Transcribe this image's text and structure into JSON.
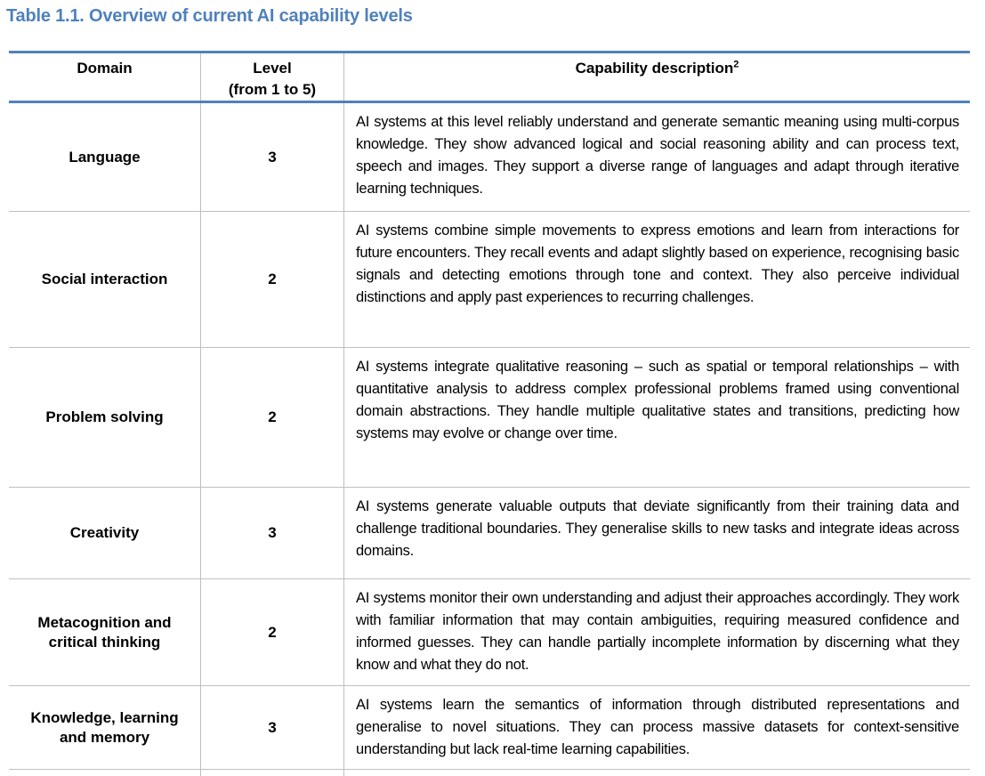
{
  "title": "Table 1.1. Overview of current AI capability levels",
  "colors": {
    "accent_blue": "#4F81BD",
    "separator_gray": "#BFBFBF",
    "text_black": "#000000"
  },
  "table": {
    "headers": {
      "domain": "Domain",
      "level_line1": "Level",
      "level_line2": "(from 1 to 5)",
      "capability": "Capability description",
      "capability_sup": "2"
    },
    "rows": [
      {
        "domain": "Language",
        "level": "3",
        "description": "AI systems at this level reliably understand and generate semantic meaning using multi-corpus knowledge. They show advanced logical and social reasoning ability and can process text, speech and images. They support a diverse range of languages and adapt through iterative learning techniques."
      },
      {
        "domain": "Social interaction",
        "level": "2",
        "description": "AI systems combine simple movements to express emotions and learn from interactions for future encounters. They recall events and adapt slightly based on experience, recognising basic signals and detecting emotions through tone and context. They also perceive individual distinctions and apply past experiences to recurring challenges."
      },
      {
        "domain": "Problem solving",
        "level": "2",
        "description": "AI systems integrate qualitative reasoning – such as spatial or temporal relationships – with quantitative analysis to address complex professional problems framed using conventional domain abstractions. They handle multiple qualitative states and transitions, predicting how systems may evolve or change over time."
      },
      {
        "domain": "Creativity",
        "level": "3",
        "description": "AI systems generate valuable outputs that deviate significantly from their training data and challenge traditional boundaries. They generalise skills to new tasks and integrate ideas across domains."
      },
      {
        "domain": "Metacognition and critical thinking",
        "level": "2",
        "description": "AI systems monitor their own understanding and adjust their approaches accordingly. They work with familiar information that may contain ambiguities, requiring measured confidence and informed guesses. They can handle partially incomplete information by discerning what they know and what they do not."
      },
      {
        "domain": "Knowledge, learning and memory",
        "level": "3",
        "description": "AI systems learn the semantics of information through distributed representations and generalise to novel situations. They can process massive datasets for context-sensitive understanding but lack real-time learning capabilities."
      }
    ]
  }
}
